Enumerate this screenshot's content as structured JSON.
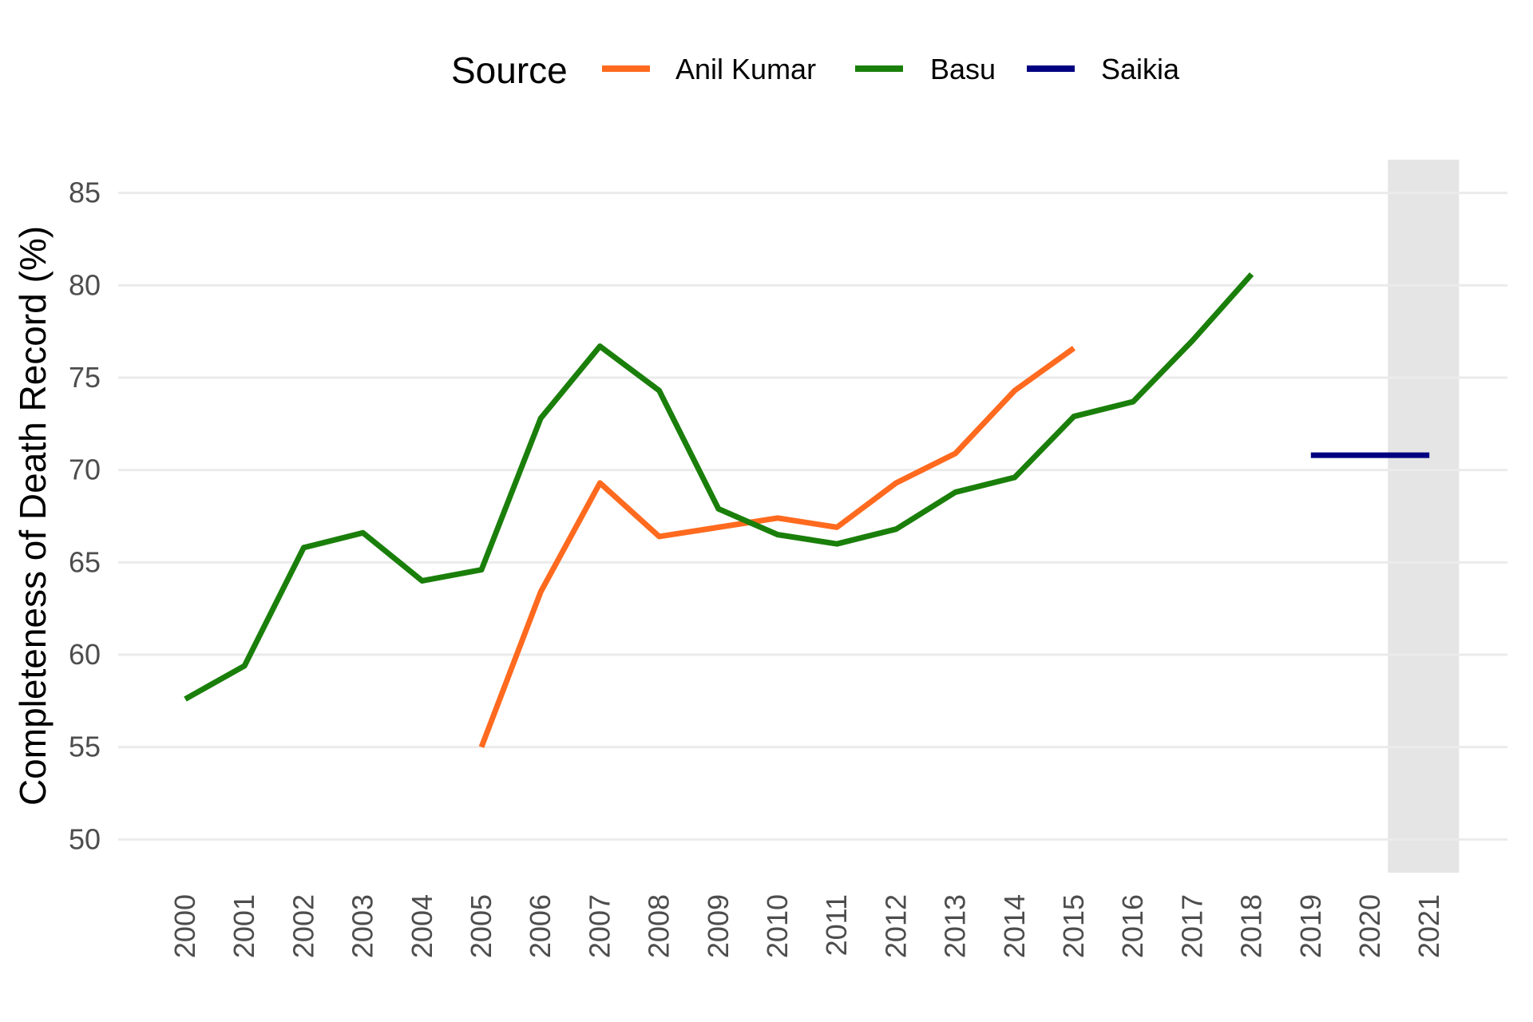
{
  "chart_data": {
    "type": "line",
    "title": "",
    "xlabel": "",
    "ylabel": "Completeness of Death Record (%)",
    "ylim": [
      48.2,
      86.8
    ],
    "yticks": [
      50,
      55,
      60,
      65,
      70,
      75,
      80,
      85
    ],
    "x": [
      2000,
      2001,
      2002,
      2003,
      2004,
      2005,
      2006,
      2007,
      2008,
      2009,
      2010,
      2011,
      2012,
      2013,
      2014,
      2015,
      2016,
      2017,
      2018,
      2019,
      2020,
      2021
    ],
    "xtick_labels": [
      "2000",
      "2001",
      "2002",
      "2003",
      "2004",
      "2005",
      "2006",
      "2007",
      "2008",
      "2009",
      "2010",
      "2011",
      "2012",
      "2013",
      "2014",
      "2015",
      "2016",
      "2017",
      "2018",
      "2019",
      "2020",
      "2021"
    ],
    "grid": "horizontal major",
    "legend": {
      "title": "Source",
      "position": "top"
    },
    "highlight_band": {
      "x_start": 2020.3,
      "x_end": 2021.5,
      "color": "#e5e5e5"
    },
    "series": [
      {
        "name": "Anil Kumar",
        "color": "#ff6a1f",
        "points": [
          [
            2005,
            55.0
          ],
          [
            2006,
            63.4
          ],
          [
            2007,
            69.3
          ],
          [
            2008,
            66.4
          ],
          [
            2009,
            66.9
          ],
          [
            2010,
            67.4
          ],
          [
            2011,
            66.9
          ],
          [
            2012,
            69.3
          ],
          [
            2013,
            70.9
          ],
          [
            2014,
            74.3
          ],
          [
            2015,
            76.6
          ]
        ]
      },
      {
        "name": "Basu",
        "color": "#1a7f0a",
        "points": [
          [
            2000,
            57.6
          ],
          [
            2001,
            59.4
          ],
          [
            2002,
            65.8
          ],
          [
            2003,
            66.6
          ],
          [
            2004,
            64.0
          ],
          [
            2005,
            64.6
          ],
          [
            2006,
            72.8
          ],
          [
            2007,
            76.7
          ],
          [
            2008,
            74.3
          ],
          [
            2009,
            67.9
          ],
          [
            2010,
            66.5
          ],
          [
            2011,
            66.0
          ],
          [
            2012,
            66.8
          ],
          [
            2013,
            68.8
          ],
          [
            2014,
            69.6
          ],
          [
            2015,
            72.9
          ],
          [
            2016,
            73.7
          ],
          [
            2017,
            77.0
          ],
          [
            2018,
            80.6
          ]
        ]
      },
      {
        "name": "Saikia",
        "color": "#000080",
        "points": [
          [
            2019,
            70.8
          ],
          [
            2021,
            70.8
          ]
        ]
      }
    ]
  }
}
